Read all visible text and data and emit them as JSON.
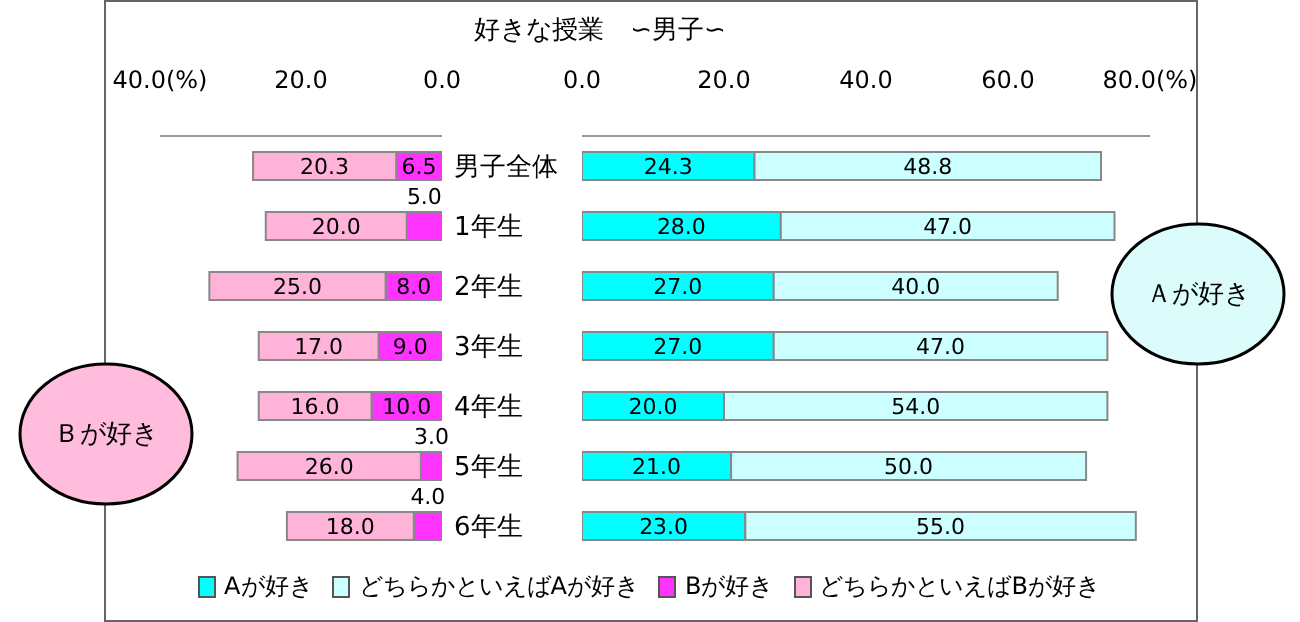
{
  "chart_data": [
    {
      "type": "bar",
      "orientation": "horizontal",
      "stacked": true,
      "legend": "bottom",
      "categories": [
        "男子全体",
        "1年生",
        "2年生",
        "3年生",
        "4年生",
        "5年生",
        "6年生"
      ],
      "xlim": [
        40,
        0
      ],
      "xticks": [
        {
          "value": 40,
          "label": "40.0(%)"
        },
        {
          "value": 20,
          "label": "20.0"
        },
        {
          "value": 0,
          "label": "0.0"
        }
      ],
      "series": [
        {
          "name": "Bが好き",
          "color": "#ff33ff",
          "values": [
            6.5,
            5,
            8,
            9,
            10,
            3,
            4
          ],
          "value_labels": [
            "6.5",
            "5.0",
            "8.0",
            "9.0",
            "10.0",
            "3.0",
            "4.0"
          ]
        },
        {
          "name": "どちらかといえばBが好き",
          "color": "#ffb3d9",
          "values": [
            20.3,
            20,
            25,
            17,
            16,
            26,
            18
          ],
          "value_labels": [
            "20.3",
            "20.0",
            "25.0",
            "17.0",
            "16.0",
            "26.0",
            "18.0"
          ]
        }
      ],
      "annotations": [
        "Ｂが好き"
      ]
    },
    {
      "type": "bar",
      "title": "好きな授業　∽男子∽",
      "orientation": "horizontal",
      "stacked": true,
      "legend": "bottom",
      "categories": [
        null,
        null,
        null,
        null,
        null,
        null,
        null
      ],
      "xlim": [
        0,
        80
      ],
      "xticks": [
        {
          "value": 0,
          "label": "0.0"
        },
        {
          "value": 20,
          "label": "20.0"
        },
        {
          "value": 40,
          "label": "40.0"
        },
        {
          "value": 60,
          "label": "60.0"
        },
        {
          "value": 80,
          "label": "80.0(%)"
        }
      ],
      "series": [
        {
          "name": "Aが好き",
          "color": "#00ffff",
          "values": [
            24.3,
            28,
            27,
            27,
            20,
            21,
            23
          ],
          "value_labels": [
            "24.3",
            "28.0",
            "27.0",
            "27.0",
            "20.0",
            "21.0",
            "23.0"
          ]
        },
        {
          "name": "どちらかといえばAが好き",
          "color": "#ccffff",
          "values": [
            48.8,
            47,
            40,
            47,
            54,
            50,
            55
          ],
          "value_labels": [
            "48.8",
            "47.0",
            "40.0",
            "47.0",
            "54.0",
            "50.0",
            "55.0"
          ]
        }
      ],
      "annotations": [
        "Ａが好き"
      ]
    }
  ]
}
